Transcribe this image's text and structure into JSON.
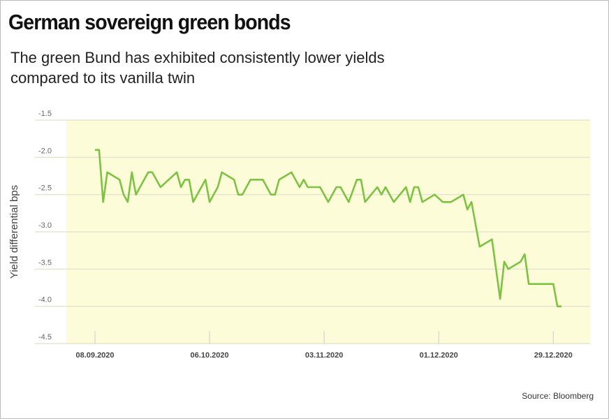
{
  "title": "German sovereign green bonds",
  "subtitle": "The green Bund has exhibited consistently lower yields compared to its vanilla twin",
  "source": "Source: Bloomberg",
  "colors": {
    "line": "#7dc242",
    "plot_bg": "#fcfcd9",
    "grid": "#e6e4cf"
  },
  "chart_data": {
    "type": "line",
    "title": "German sovereign green bonds",
    "subtitle": "The green Bund has exhibited consistently lower yields compared to its vanilla twin",
    "xlabel": "",
    "ylabel": "Yield differential bps",
    "ylim": [
      -4.5,
      -1.5
    ],
    "xlim": [
      "2020-09-01",
      "2021-01-07"
    ],
    "yticks": [
      "-1.5",
      "-2.0",
      "-2.5",
      "-3.0",
      "-3.5",
      "-4.0",
      "-4.5"
    ],
    "xticks": [
      {
        "date": "2020-09-08",
        "label": "08.09.2020"
      },
      {
        "date": "2020-10-06",
        "label": "06.10.2020"
      },
      {
        "date": "2020-11-03",
        "label": "03.11.2020"
      },
      {
        "date": "2020-12-01",
        "label": "01.12.2020"
      },
      {
        "date": "2020-12-29",
        "label": "29.12.2020"
      }
    ],
    "grid": true,
    "series": [
      {
        "points": [
          [
            "2020-09-08",
            -1.9
          ],
          [
            "2020-09-09",
            -1.9
          ],
          [
            "2020-09-10",
            -2.6
          ],
          [
            "2020-09-11",
            -2.2
          ],
          [
            "2020-09-14",
            -2.3
          ],
          [
            "2020-09-15",
            -2.5
          ],
          [
            "2020-09-16",
            -2.6
          ],
          [
            "2020-09-17",
            -2.2
          ],
          [
            "2020-09-18",
            -2.5
          ],
          [
            "2020-09-21",
            -2.2
          ],
          [
            "2020-09-22",
            -2.2
          ],
          [
            "2020-09-24",
            -2.4
          ],
          [
            "2020-09-26",
            -2.3
          ],
          [
            "2020-09-28",
            -2.2
          ],
          [
            "2020-09-29",
            -2.4
          ],
          [
            "2020-09-30",
            -2.3
          ],
          [
            "2020-10-01",
            -2.3
          ],
          [
            "2020-10-02",
            -2.6
          ],
          [
            "2020-10-05",
            -2.3
          ],
          [
            "2020-10-06",
            -2.6
          ],
          [
            "2020-10-08",
            -2.4
          ],
          [
            "2020-10-09",
            -2.2
          ],
          [
            "2020-10-12",
            -2.3
          ],
          [
            "2020-10-13",
            -2.5
          ],
          [
            "2020-10-14",
            -2.5
          ],
          [
            "2020-10-16",
            -2.3
          ],
          [
            "2020-10-19",
            -2.3
          ],
          [
            "2020-10-21",
            -2.5
          ],
          [
            "2020-10-22",
            -2.5
          ],
          [
            "2020-10-23",
            -2.3
          ],
          [
            "2020-10-26",
            -2.2
          ],
          [
            "2020-10-28",
            -2.4
          ],
          [
            "2020-10-29",
            -2.3
          ],
          [
            "2020-10-30",
            -2.4
          ],
          [
            "2020-11-02",
            -2.4
          ],
          [
            "2020-11-04",
            -2.6
          ],
          [
            "2020-11-06",
            -2.4
          ],
          [
            "2020-11-07",
            -2.4
          ],
          [
            "2020-11-09",
            -2.6
          ],
          [
            "2020-11-11",
            -2.3
          ],
          [
            "2020-11-12",
            -2.3
          ],
          [
            "2020-11-13",
            -2.6
          ],
          [
            "2020-11-16",
            -2.4
          ],
          [
            "2020-11-17",
            -2.5
          ],
          [
            "2020-11-18",
            -2.4
          ],
          [
            "2020-11-20",
            -2.6
          ],
          [
            "2020-11-23",
            -2.4
          ],
          [
            "2020-11-24",
            -2.6
          ],
          [
            "2020-11-25",
            -2.4
          ],
          [
            "2020-11-26",
            -2.4
          ],
          [
            "2020-11-27",
            -2.6
          ],
          [
            "2020-11-30",
            -2.5
          ],
          [
            "2020-12-02",
            -2.6
          ],
          [
            "2020-12-04",
            -2.6
          ],
          [
            "2020-12-07",
            -2.5
          ],
          [
            "2020-12-08",
            -2.7
          ],
          [
            "2020-12-09",
            -2.6
          ],
          [
            "2020-12-11",
            -3.2
          ],
          [
            "2020-12-14",
            -3.1
          ],
          [
            "2020-12-16",
            -3.9
          ],
          [
            "2020-12-17",
            -3.4
          ],
          [
            "2020-12-18",
            -3.5
          ],
          [
            "2020-12-21",
            -3.4
          ],
          [
            "2020-12-22",
            -3.3
          ],
          [
            "2020-12-23",
            -3.7
          ],
          [
            "2020-12-29",
            -3.7
          ],
          [
            "2020-12-30",
            -4.0
          ],
          [
            "2020-12-31",
            -4.0
          ]
        ]
      }
    ]
  }
}
